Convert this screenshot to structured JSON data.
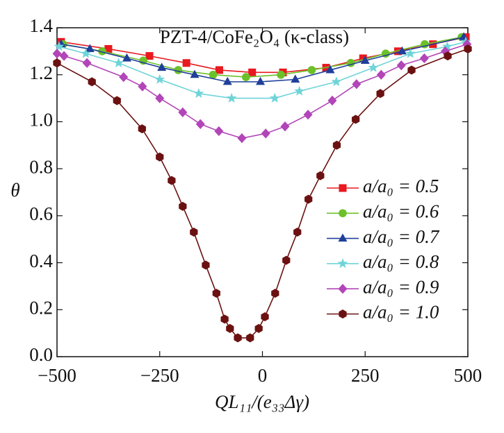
{
  "chart_data": {
    "type": "line",
    "title": "PZT-4/CoFe₂O₄ (κ-class)",
    "xlabel": "QL₁₁/(e₃₃Δγ)",
    "ylabel": "θ",
    "xlim": [
      -500,
      500
    ],
    "ylim": [
      0,
      1.4
    ],
    "xticks": [
      {
        "value": -500,
        "label": "−500"
      },
      {
        "value": -250,
        "label": "−250"
      },
      0,
      250,
      500
    ],
    "yticks": [
      {
        "value": 0,
        "label": "0.0"
      },
      {
        "value": 0.2,
        "label": "0.2"
      },
      {
        "value": 0.4,
        "label": "0.4"
      },
      {
        "value": 0.6,
        "label": "0.6"
      },
      {
        "value": 0.8,
        "label": "0.8"
      },
      {
        "value": 1.0,
        "label": "1.0"
      },
      {
        "value": 1.2,
        "label": "1.2"
      },
      {
        "value": 1.4,
        "label": "1.4"
      }
    ],
    "legend": "right",
    "series": [
      {
        "name": "a/a₀ = 0.5",
        "color": "#e8191f",
        "marker": "square",
        "x": [
          -490,
          -375,
          -275,
          -185,
          -105,
          -25,
          50,
          155,
          245,
          330,
          415,
          495
        ],
        "values": [
          1.34,
          1.31,
          1.28,
          1.25,
          1.22,
          1.21,
          1.21,
          1.23,
          1.27,
          1.3,
          1.33,
          1.36
        ]
      },
      {
        "name": "a/a₀ = 0.6",
        "color": "#6cc02a",
        "marker": "circle",
        "x": [
          -485,
          -390,
          -290,
          -205,
          -120,
          -40,
          45,
          120,
          215,
          300,
          395,
          485
        ],
        "values": [
          1.33,
          1.3,
          1.26,
          1.22,
          1.2,
          1.19,
          1.2,
          1.22,
          1.25,
          1.29,
          1.33,
          1.36
        ]
      },
      {
        "name": "a/a₀ = 0.7",
        "color": "#1f3f9a",
        "marker": "triangle",
        "x": [
          -490,
          -420,
          -330,
          -245,
          -165,
          -85,
          -5,
          80,
          165,
          250,
          340,
          490
        ],
        "values": [
          1.33,
          1.31,
          1.27,
          1.23,
          1.2,
          1.17,
          1.17,
          1.18,
          1.22,
          1.26,
          1.3,
          1.36
        ]
      },
      {
        "name": "a/a₀ = 0.8",
        "color": "#6fd4d8",
        "marker": "star",
        "x": [
          -495,
          -430,
          -350,
          -250,
          -155,
          -75,
          30,
          90,
          180,
          270,
          360,
          450,
          495
        ],
        "values": [
          1.32,
          1.29,
          1.25,
          1.18,
          1.12,
          1.1,
          1.1,
          1.13,
          1.17,
          1.23,
          1.29,
          1.32,
          1.34
        ]
      },
      {
        "name": "a/a₀ = 0.9",
        "color": "#b245b8",
        "marker": "diamond",
        "x": [
          -500,
          -483,
          -427,
          -338,
          -292,
          -250,
          -194,
          -151,
          -106,
          -50,
          8,
          55,
          111,
          170,
          229,
          289,
          338,
          394,
          445,
          498
        ],
        "values": [
          1.29,
          1.28,
          1.25,
          1.19,
          1.15,
          1.1,
          1.04,
          0.99,
          0.96,
          0.93,
          0.95,
          0.98,
          1.03,
          1.09,
          1.16,
          1.2,
          1.24,
          1.27,
          1.3,
          1.33
        ]
      },
      {
        "name": "a/a₀ = 1.0",
        "color": "#6b1111",
        "marker": "hexagon",
        "x": [
          -500,
          -415,
          -354,
          -293,
          -250,
          -221,
          -194,
          -167,
          -138,
          -112,
          -92,
          -79,
          -60,
          -30,
          -9,
          6,
          31,
          58,
          85,
          112,
          141,
          181,
          227,
          287,
          363,
          451,
          500
        ],
        "values": [
          1.25,
          1.17,
          1.09,
          0.97,
          0.85,
          0.75,
          0.64,
          0.53,
          0.39,
          0.27,
          0.16,
          0.12,
          0.08,
          0.08,
          0.12,
          0.17,
          0.27,
          0.41,
          0.53,
          0.67,
          0.77,
          0.9,
          1.01,
          1.12,
          1.22,
          1.28,
          1.31
        ]
      }
    ]
  }
}
